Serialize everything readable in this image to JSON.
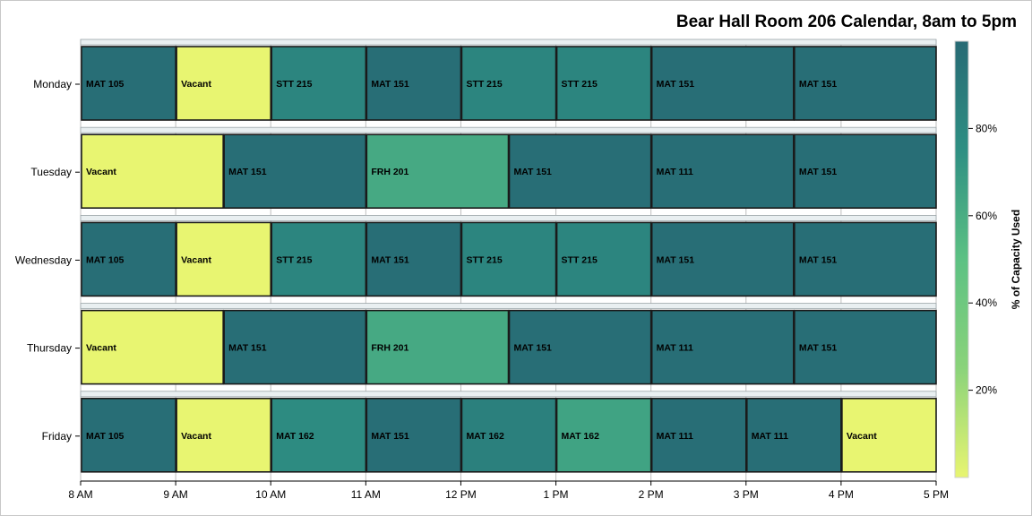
{
  "chart_data": {
    "type": "heatmap",
    "title": "Bear Hall Room 206 Calendar, 8am to 5pm",
    "xlabel": "",
    "ylabel": "",
    "x_ticks": [
      "8 AM",
      "9 AM",
      "10 AM",
      "11 AM",
      "12 PM",
      "1 PM",
      "2 PM",
      "3 PM",
      "4 PM",
      "5 PM"
    ],
    "x_range_hours": [
      8,
      17
    ],
    "days": [
      "Monday",
      "Tuesday",
      "Wednesday",
      "Thursday",
      "Friday"
    ],
    "colorbar": {
      "label": "% of Capacity Used",
      "ticks": [
        "20%",
        "40%",
        "60%",
        "80%"
      ],
      "range": [
        0,
        100
      ],
      "colors": [
        "#e8f571",
        "#8ad37a",
        "#5cc183",
        "#2e8f83",
        "#276a74"
      ]
    },
    "schedule": [
      {
        "day": "Monday",
        "blocks": [
          {
            "label": "MAT 105",
            "start": 8,
            "end": 9,
            "capacity": 97
          },
          {
            "label": "Vacant",
            "start": 9,
            "end": 10,
            "capacity": 0
          },
          {
            "label": "STT 215",
            "start": 10,
            "end": 11,
            "capacity": 82
          },
          {
            "label": "MAT 151",
            "start": 11,
            "end": 12,
            "capacity": 97
          },
          {
            "label": "STT 215",
            "start": 12,
            "end": 13,
            "capacity": 82
          },
          {
            "label": "STT 215",
            "start": 13,
            "end": 14,
            "capacity": 82
          },
          {
            "label": "MAT 151",
            "start": 14,
            "end": 15.5,
            "capacity": 97
          },
          {
            "label": "MAT 151",
            "start": 15.5,
            "end": 17,
            "capacity": 97
          }
        ]
      },
      {
        "day": "Tuesday",
        "blocks": [
          {
            "label": "Vacant",
            "start": 8,
            "end": 9.5,
            "capacity": 0
          },
          {
            "label": "MAT 151",
            "start": 9.5,
            "end": 11,
            "capacity": 97
          },
          {
            "label": "FRH 201",
            "start": 11,
            "end": 12.5,
            "capacity": 62
          },
          {
            "label": "MAT 151",
            "start": 12.5,
            "end": 14,
            "capacity": 97
          },
          {
            "label": "MAT 111",
            "start": 14,
            "end": 15.5,
            "capacity": 97
          },
          {
            "label": "MAT 151",
            "start": 15.5,
            "end": 17,
            "capacity": 97
          }
        ]
      },
      {
        "day": "Wednesday",
        "blocks": [
          {
            "label": "MAT 105",
            "start": 8,
            "end": 9,
            "capacity": 97
          },
          {
            "label": "Vacant",
            "start": 9,
            "end": 10,
            "capacity": 0
          },
          {
            "label": "STT 215",
            "start": 10,
            "end": 11,
            "capacity": 82
          },
          {
            "label": "MAT 151",
            "start": 11,
            "end": 12,
            "capacity": 97
          },
          {
            "label": "STT 215",
            "start": 12,
            "end": 13,
            "capacity": 82
          },
          {
            "label": "STT 215",
            "start": 13,
            "end": 14,
            "capacity": 82
          },
          {
            "label": "MAT 151",
            "start": 14,
            "end": 15.5,
            "capacity": 97
          },
          {
            "label": "MAT 151",
            "start": 15.5,
            "end": 17,
            "capacity": 97
          }
        ]
      },
      {
        "day": "Thursday",
        "blocks": [
          {
            "label": "Vacant",
            "start": 8,
            "end": 9.5,
            "capacity": 0
          },
          {
            "label": "MAT 151",
            "start": 9.5,
            "end": 11,
            "capacity": 97
          },
          {
            "label": "FRH 201",
            "start": 11,
            "end": 12.5,
            "capacity": 62
          },
          {
            "label": "MAT 151",
            "start": 12.5,
            "end": 14,
            "capacity": 97
          },
          {
            "label": "MAT 111",
            "start": 14,
            "end": 15.5,
            "capacity": 97
          },
          {
            "label": "MAT 151",
            "start": 15.5,
            "end": 17,
            "capacity": 97
          }
        ]
      },
      {
        "day": "Friday",
        "blocks": [
          {
            "label": "MAT 105",
            "start": 8,
            "end": 9,
            "capacity": 97
          },
          {
            "label": "Vacant",
            "start": 9,
            "end": 10,
            "capacity": 0
          },
          {
            "label": "MAT 162",
            "start": 10,
            "end": 11,
            "capacity": 78
          },
          {
            "label": "MAT 151",
            "start": 11,
            "end": 12,
            "capacity": 97
          },
          {
            "label": "MAT 162",
            "start": 12,
            "end": 13,
            "capacity": 85
          },
          {
            "label": "MAT 162",
            "start": 13,
            "end": 14,
            "capacity": 65
          },
          {
            "label": "MAT 111",
            "start": 14,
            "end": 15,
            "capacity": 97
          },
          {
            "label": "MAT 111",
            "start": 15,
            "end": 16,
            "capacity": 97
          },
          {
            "label": "Vacant",
            "start": 16,
            "end": 17,
            "capacity": 0
          }
        ]
      }
    ]
  }
}
